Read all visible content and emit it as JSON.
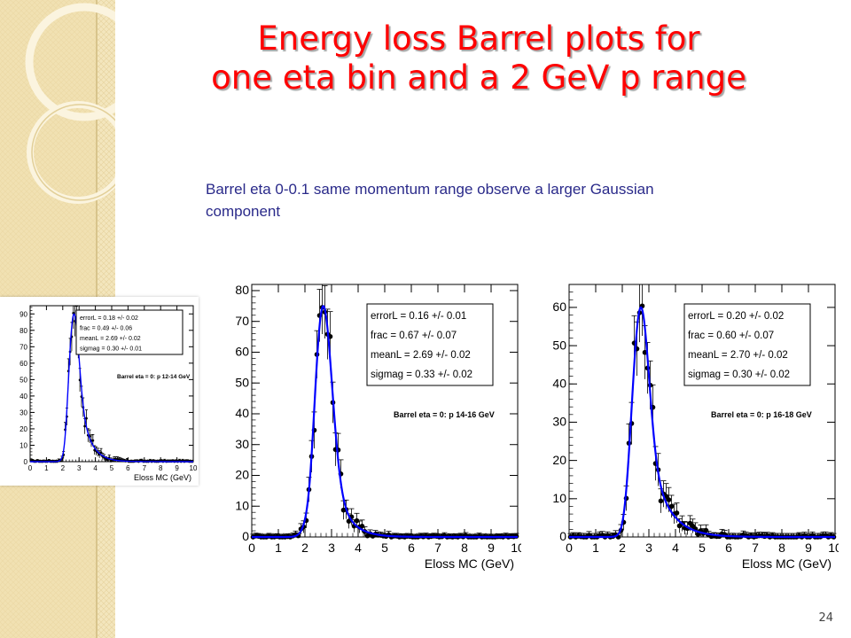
{
  "slide": {
    "title_line1": "Energy loss Barrel plots for",
    "title_line2": "one eta bin and a 2 GeV p range",
    "body_text": "Barrel eta 0-0.1 same momentum range observe a larger Gaussian component",
    "page_number": "24"
  },
  "colors": {
    "title": "#ff0000",
    "body_text": "#2a2a8a",
    "fit_curve": "#0000ff",
    "data_points": "#000000",
    "background_strip": "#f3e6bd"
  },
  "chart_data": [
    {
      "type": "scatter",
      "title": "Barrel eta = 0: p 12-14 GeV",
      "xlabel": "Eloss MC (GeV)",
      "ylabel": "",
      "xlim": [
        0,
        10
      ],
      "ylim": [
        0,
        95
      ],
      "xticks": [
        "0",
        "1",
        "2",
        "3",
        "4",
        "5",
        "6",
        "7",
        "8",
        "9",
        "10"
      ],
      "yticks": [
        0,
        10,
        20,
        30,
        40,
        50,
        60,
        70,
        80,
        90
      ],
      "stats": [
        "errorL = 0.18 +/- 0.02",
        "frac = 0.49 +/- 0.06",
        "meanL = 2.69 +/- 0.02",
        "sigmag = 0.30 +/- 0.01"
      ],
      "fit": {
        "meanL": 2.69,
        "errorL": 0.18,
        "frac": 0.49,
        "sigmag": 0.3,
        "peak": 90
      }
    },
    {
      "type": "scatter",
      "title": "Barrel eta = 0: p 14-16 GeV",
      "xlabel": "Eloss MC (GeV)",
      "ylabel": "",
      "xlim": [
        0,
        10
      ],
      "ylim": [
        0,
        82
      ],
      "xticks": [
        "0",
        "1",
        "2",
        "3",
        "4",
        "5",
        "6",
        "7",
        "8",
        "9",
        "10"
      ],
      "yticks": [
        0,
        10,
        20,
        30,
        40,
        50,
        60,
        70,
        80
      ],
      "stats": [
        "errorL =  0.16 +/- 0.01",
        "frac =  0.67 +/- 0.07",
        "meanL =  2.69 +/- 0.02",
        "sigmag =  0.33 +/- 0.02"
      ],
      "fit": {
        "meanL": 2.69,
        "errorL": 0.16,
        "frac": 0.67,
        "sigmag": 0.33,
        "peak": 75
      }
    },
    {
      "type": "scatter",
      "title": "Barrel eta = 0: p 16-18 GeV",
      "xlabel": "Eloss MC (GeV)",
      "ylabel": "",
      "xlim": [
        0,
        10
      ],
      "ylim": [
        0,
        66
      ],
      "xticks": [
        "0",
        "1",
        "2",
        "3",
        "4",
        "5",
        "6",
        "7",
        "8",
        "9",
        "10"
      ],
      "yticks": [
        0,
        10,
        20,
        30,
        40,
        50,
        60
      ],
      "stats": [
        "errorL =  0.20 +/- 0.02",
        "frac =  0.60 +/- 0.07",
        "meanL =  2.70 +/- 0.02",
        "sigmag =  0.30 +/- 0.02"
      ],
      "fit": {
        "meanL": 2.7,
        "errorL": 0.2,
        "frac": 0.6,
        "sigmag": 0.3,
        "peak": 60
      }
    }
  ]
}
